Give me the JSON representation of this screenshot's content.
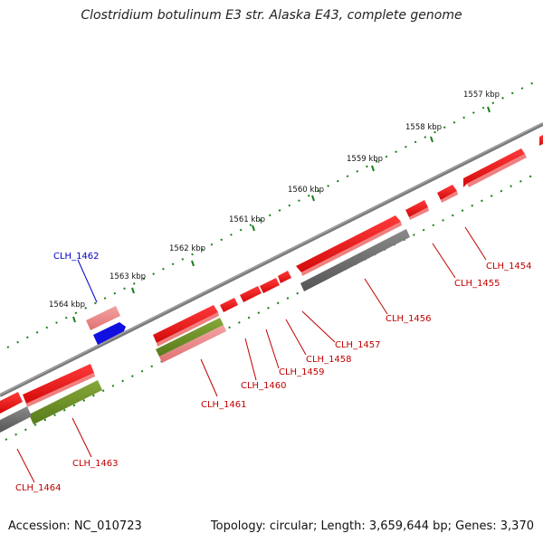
{
  "title": "Clostridium botulinum E3 str. Alaska E43, complete genome",
  "footer": {
    "accession": "Accession: NC_010723",
    "summary": "Topology: circular; Length: 3,659,644 bp; Genes: 3,370"
  },
  "colors": {
    "gene_red": "#e8151b",
    "gene_pink": "#ee8a8a",
    "gene_blue": "#1010e0",
    "gene_olive": "#6b8e23",
    "gene_gray": "#6e6e6e",
    "backbone": "#808080",
    "tick": "#1a7f1a",
    "label_red": "#c00000",
    "label_blue": "#0000cc"
  },
  "ticks": [
    {
      "label": "1557 kbp"
    },
    {
      "label": "1558 kbp"
    },
    {
      "label": "1559 kbp"
    },
    {
      "label": "1560 kbp"
    },
    {
      "label": "1561 kbp"
    },
    {
      "label": "1562 kbp"
    },
    {
      "label": "1563 kbp"
    },
    {
      "label": "1564 kbp"
    }
  ],
  "genes": [
    {
      "id": "CLH_1454",
      "color": "red"
    },
    {
      "id": "CLH_1455",
      "color": "red"
    },
    {
      "id": "CLH_1456",
      "color": "red"
    },
    {
      "id": "CLH_1457",
      "color": "red"
    },
    {
      "id": "CLH_1458",
      "color": "red"
    },
    {
      "id": "CLH_1459",
      "color": "red"
    },
    {
      "id": "CLH_1460",
      "color": "red"
    },
    {
      "id": "CLH_1461",
      "color": "red"
    },
    {
      "id": "CLH_1462",
      "color": "blue"
    },
    {
      "id": "CLH_1463",
      "color": "red"
    },
    {
      "id": "CLH_1464",
      "color": "red"
    }
  ]
}
